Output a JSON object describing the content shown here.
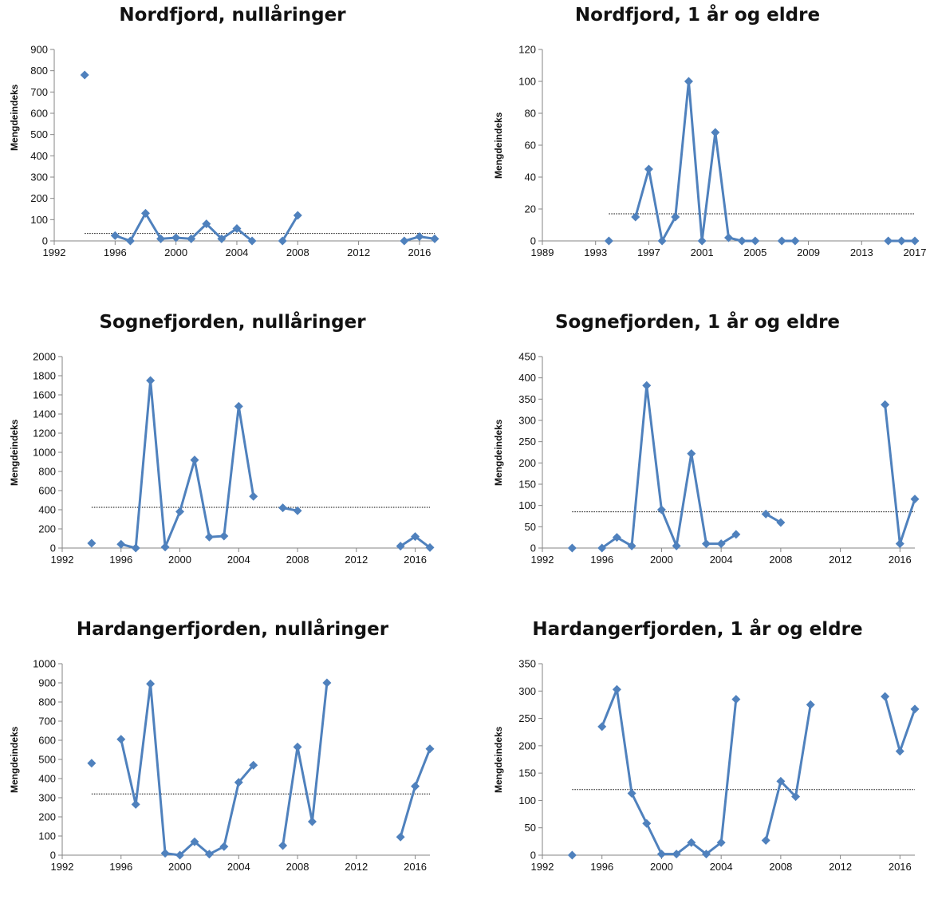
{
  "chart_data": [
    {
      "type": "line",
      "title": "Nordfjord, nullåringer",
      "ylabel": "Mengdeindeks",
      "xlim": [
        1992,
        2017
      ],
      "xticks": [
        1992,
        1996,
        2000,
        2004,
        2008,
        2012,
        2016
      ],
      "ylim": [
        0,
        900
      ],
      "yticks": [
        0,
        100,
        200,
        300,
        400,
        500,
        600,
        700,
        800,
        900
      ],
      "reference_line": {
        "y": 35,
        "x_from": 1994,
        "x_to": 2017
      },
      "series": [
        {
          "color": "#4F81BD",
          "points": [
            [
              1994,
              780
            ],
            [
              1996,
              25
            ],
            [
              1997,
              0
            ],
            [
              1998,
              130
            ],
            [
              1999,
              10
            ],
            [
              2000,
              15
            ],
            [
              2001,
              10
            ],
            [
              2002,
              80
            ],
            [
              2003,
              10
            ],
            [
              2004,
              58
            ],
            [
              2005,
              0
            ],
            [
              2007,
              0
            ],
            [
              2008,
              120
            ],
            [
              2015,
              0
            ],
            [
              2016,
              20
            ],
            [
              2017,
              10
            ]
          ]
        }
      ]
    },
    {
      "type": "line",
      "title": "Nordfjord, 1 år og eldre",
      "ylabel": "Mengdeindeks",
      "xlim": [
        1989,
        2017
      ],
      "xticks": [
        1989,
        1993,
        1997,
        2001,
        2005,
        2009,
        2013,
        2017
      ],
      "ylim": [
        0,
        120
      ],
      "yticks": [
        0,
        20,
        40,
        60,
        80,
        100,
        120
      ],
      "reference_line": {
        "y": 17,
        "x_from": 1994,
        "x_to": 2017
      },
      "series": [
        {
          "color": "#4F81BD",
          "points": [
            [
              1994,
              0
            ],
            [
              1996,
              15
            ],
            [
              1997,
              45
            ],
            [
              1998,
              0
            ],
            [
              1999,
              15
            ],
            [
              2000,
              100
            ],
            [
              2001,
              0
            ],
            [
              2002,
              68
            ],
            [
              2003,
              2
            ],
            [
              2004,
              0
            ],
            [
              2005,
              0
            ],
            [
              2007,
              0
            ],
            [
              2008,
              0
            ],
            [
              2015,
              0
            ],
            [
              2016,
              0
            ],
            [
              2017,
              0
            ]
          ]
        }
      ]
    },
    {
      "type": "line",
      "title": "Sognefjorden, nullåringer",
      "ylabel": "Mengdeindeks",
      "xlim": [
        1992,
        2017
      ],
      "xticks": [
        1992,
        1996,
        2000,
        2004,
        2008,
        2012,
        2016
      ],
      "ylim": [
        0,
        2000
      ],
      "yticks": [
        0,
        200,
        400,
        600,
        800,
        1000,
        1200,
        1400,
        1600,
        1800,
        2000
      ],
      "reference_line": {
        "y": 425,
        "x_from": 1994,
        "x_to": 2017
      },
      "series": [
        {
          "color": "#4F81BD",
          "points": [
            [
              1994,
              50
            ],
            [
              1996,
              40
            ],
            [
              1997,
              0
            ],
            [
              1998,
              1750
            ],
            [
              1999,
              10
            ],
            [
              2000,
              380
            ],
            [
              2001,
              920
            ],
            [
              2002,
              115
            ],
            [
              2003,
              125
            ],
            [
              2004,
              1480
            ],
            [
              2005,
              540
            ],
            [
              2007,
              420
            ],
            [
              2008,
              390
            ],
            [
              2015,
              20
            ],
            [
              2016,
              120
            ],
            [
              2017,
              5
            ]
          ]
        }
      ]
    },
    {
      "type": "line",
      "title": "Sognefjorden, 1 år og eldre",
      "ylabel": "Mengdeindeks",
      "xlim": [
        1992,
        2017
      ],
      "xticks": [
        1992,
        1996,
        2000,
        2004,
        2008,
        2012,
        2016
      ],
      "ylim": [
        0,
        450
      ],
      "yticks": [
        0,
        50,
        100,
        150,
        200,
        250,
        300,
        350,
        400,
        450
      ],
      "reference_line": {
        "y": 85,
        "x_from": 1994,
        "x_to": 2017
      },
      "series": [
        {
          "color": "#4F81BD",
          "points": [
            [
              1994,
              0
            ],
            [
              1996,
              0
            ],
            [
              1997,
              25
            ],
            [
              1998,
              5
            ],
            [
              1999,
              382
            ],
            [
              2000,
              90
            ],
            [
              2001,
              5
            ],
            [
              2002,
              222
            ],
            [
              2003,
              10
            ],
            [
              2004,
              10
            ],
            [
              2005,
              32
            ],
            [
              2007,
              80
            ],
            [
              2008,
              60
            ],
            [
              2015,
              337
            ],
            [
              2016,
              10
            ],
            [
              2017,
              115
            ]
          ]
        }
      ]
    },
    {
      "type": "line",
      "title": "Hardangerfjorden, nullåringer",
      "ylabel": "Mengdeindeks",
      "xlim": [
        1992,
        2017
      ],
      "xticks": [
        1992,
        1996,
        2000,
        2004,
        2008,
        2012,
        2016
      ],
      "ylim": [
        0,
        1000
      ],
      "yticks": [
        0,
        100,
        200,
        300,
        400,
        500,
        600,
        700,
        800,
        900,
        1000
      ],
      "reference_line": {
        "y": 320,
        "x_from": 1994,
        "x_to": 2017
      },
      "series": [
        {
          "color": "#4F81BD",
          "points": [
            [
              1994,
              480
            ],
            [
              1996,
              605
            ],
            [
              1997,
              265
            ],
            [
              1998,
              895
            ],
            [
              1999,
              10
            ],
            [
              2000,
              0
            ],
            [
              2001,
              70
            ],
            [
              2002,
              5
            ],
            [
              2003,
              45
            ],
            [
              2004,
              380
            ],
            [
              2005,
              470
            ],
            [
              2007,
              50
            ],
            [
              2008,
              565
            ],
            [
              2009,
              175
            ],
            [
              2010,
              900
            ],
            [
              2015,
              95
            ],
            [
              2016,
              360
            ],
            [
              2017,
              555
            ]
          ]
        }
      ]
    },
    {
      "type": "line",
      "title": "Hardangerfjorden, 1 år og eldre",
      "ylabel": "Mengdeindeks",
      "xlim": [
        1992,
        2017
      ],
      "xticks": [
        1992,
        1996,
        2000,
        2004,
        2008,
        2012,
        2016
      ],
      "ylim": [
        0,
        350
      ],
      "yticks": [
        0,
        50,
        100,
        150,
        200,
        250,
        300,
        350
      ],
      "reference_line": {
        "y": 120,
        "x_from": 1994,
        "x_to": 2017
      },
      "series": [
        {
          "color": "#4F81BD",
          "points": [
            [
              1994,
              0
            ],
            [
              1996,
              235
            ],
            [
              1997,
              303
            ],
            [
              1998,
              113
            ],
            [
              1999,
              58
            ],
            [
              2000,
              2
            ],
            [
              2001,
              2
            ],
            [
              2002,
              23
            ],
            [
              2003,
              2
            ],
            [
              2004,
              23
            ],
            [
              2005,
              285
            ],
            [
              2007,
              27
            ],
            [
              2008,
              135
            ],
            [
              2009,
              107
            ],
            [
              2010,
              275
            ],
            [
              2015,
              290
            ],
            [
              2016,
              190
            ],
            [
              2017,
              267
            ]
          ]
        }
      ]
    }
  ]
}
